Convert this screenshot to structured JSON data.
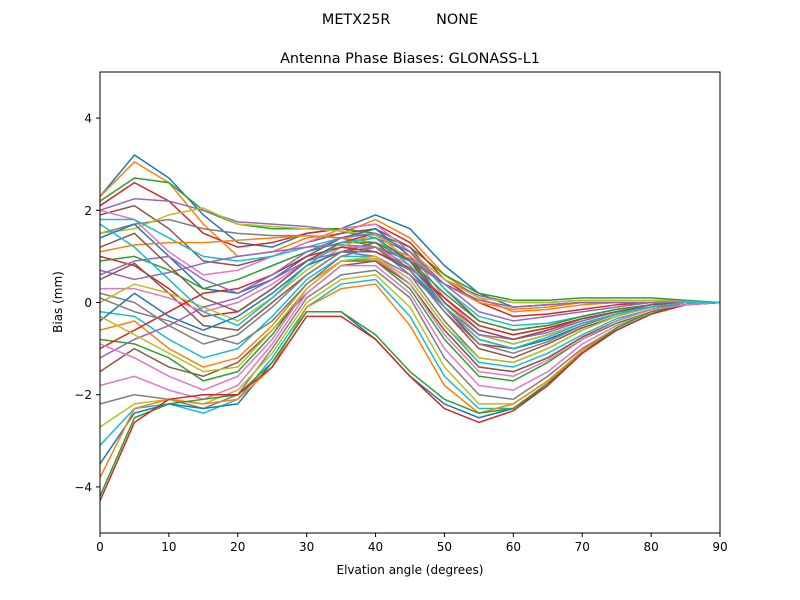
{
  "chart_data": {
    "type": "line",
    "suptitle": "METX25R          NONE",
    "title": "Antenna Phase Biases: GLONASS-L1",
    "xlabel": "Elvation angle (degrees)",
    "ylabel": "Bias (mm)",
    "xlim": [
      0,
      90
    ],
    "ylim": [
      -5,
      5
    ],
    "xticks": [
      0,
      10,
      20,
      30,
      40,
      50,
      60,
      70,
      80,
      90
    ],
    "yticks": [
      -4,
      -2,
      0,
      2,
      4
    ],
    "grid": false,
    "legend": "none",
    "x": [
      0,
      5,
      10,
      15,
      20,
      25,
      30,
      35,
      40,
      45,
      50,
      55,
      60,
      65,
      70,
      75,
      80,
      85,
      90
    ],
    "colors": [
      "#1f77b4",
      "#ff7f0e",
      "#2ca02c",
      "#d62728",
      "#9467bd",
      "#8c564b",
      "#e377c2",
      "#7f7f7f",
      "#bcbd22",
      "#17becf"
    ],
    "series": [
      {
        "values": [
          2.3,
          3.2,
          2.7,
          1.9,
          1.3,
          1.2,
          1.5,
          1.6,
          1.9,
          1.6,
          0.8,
          0.2,
          -0.1,
          -0.05,
          0.0,
          0.0,
          0.0,
          0.0,
          0.0
        ]
      },
      {
        "values": [
          2.3,
          3.05,
          2.6,
          1.7,
          1.0,
          1.1,
          1.4,
          1.5,
          1.8,
          1.4,
          0.6,
          0.1,
          -0.2,
          -0.15,
          -0.05,
          0.0,
          0.0,
          0.0,
          0.0
        ]
      },
      {
        "values": [
          2.2,
          2.7,
          2.6,
          2.0,
          1.7,
          1.6,
          1.6,
          1.6,
          1.5,
          1.2,
          0.6,
          0.2,
          0.05,
          0.05,
          0.1,
          0.1,
          0.1,
          0.05,
          0.0
        ]
      },
      {
        "values": [
          2.1,
          2.6,
          2.2,
          1.5,
          1.2,
          1.3,
          1.5,
          1.6,
          1.7,
          1.3,
          0.5,
          0.0,
          -0.3,
          -0.25,
          -0.15,
          -0.05,
          0.0,
          0.0,
          0.0
        ]
      },
      {
        "values": [
          2.0,
          2.25,
          2.2,
          2.0,
          1.75,
          1.7,
          1.65,
          1.55,
          1.4,
          1.1,
          0.5,
          0.15,
          0.0,
          0.0,
          0.05,
          0.05,
          0.05,
          0.03,
          0.0
        ]
      },
      {
        "values": [
          1.9,
          2.1,
          1.6,
          0.9,
          0.8,
          1.0,
          1.3,
          1.5,
          1.6,
          1.2,
          0.3,
          -0.4,
          -0.6,
          -0.5,
          -0.3,
          -0.15,
          -0.05,
          0.0,
          0.0
        ]
      },
      {
        "values": [
          2.0,
          1.8,
          1.1,
          0.6,
          0.7,
          1.0,
          1.3,
          1.6,
          1.7,
          1.1,
          0.1,
          -0.6,
          -0.8,
          -0.6,
          -0.4,
          -0.2,
          -0.1,
          0.0,
          0.0
        ]
      },
      {
        "values": [
          1.5,
          1.7,
          1.8,
          1.6,
          1.5,
          1.45,
          1.45,
          1.4,
          1.2,
          0.9,
          0.4,
          0.05,
          -0.1,
          -0.05,
          0.0,
          0.0,
          0.0,
          0.0,
          0.0
        ]
      },
      {
        "values": [
          1.5,
          1.6,
          1.9,
          2.05,
          1.7,
          1.65,
          1.6,
          1.55,
          1.45,
          1.1,
          0.5,
          0.1,
          0.0,
          0.0,
          0.05,
          0.05,
          0.05,
          0.02,
          0.0
        ]
      },
      {
        "values": [
          1.8,
          1.8,
          1.4,
          1.0,
          0.9,
          1.0,
          1.2,
          1.4,
          1.5,
          1.1,
          0.3,
          -0.3,
          -0.5,
          -0.45,
          -0.3,
          -0.15,
          -0.05,
          0.0,
          0.0
        ]
      },
      {
        "values": [
          1.4,
          1.7,
          1.0,
          0.3,
          0.2,
          0.5,
          1.0,
          1.4,
          1.6,
          1.0,
          0.0,
          -0.7,
          -0.9,
          -0.7,
          -0.45,
          -0.25,
          -0.1,
          0.0,
          0.0
        ]
      },
      {
        "values": [
          1.1,
          1.25,
          1.3,
          1.3,
          1.35,
          1.4,
          1.45,
          1.4,
          1.3,
          1.0,
          0.4,
          0.0,
          -0.15,
          -0.1,
          0.0,
          0.0,
          0.0,
          0.0,
          0.0
        ]
      },
      {
        "values": [
          0.9,
          1.0,
          0.7,
          0.3,
          0.5,
          0.8,
          1.1,
          1.3,
          1.3,
          0.9,
          0.2,
          -0.4,
          -0.6,
          -0.5,
          -0.3,
          -0.15,
          -0.05,
          0.0,
          0.0
        ]
      },
      {
        "values": [
          1.0,
          0.8,
          0.3,
          -0.3,
          -0.2,
          0.3,
          0.9,
          1.3,
          1.5,
          0.9,
          -0.1,
          -0.9,
          -1.0,
          -0.8,
          -0.5,
          -0.25,
          -0.1,
          0.0,
          0.0
        ]
      },
      {
        "values": [
          0.7,
          0.5,
          0.65,
          0.85,
          1.0,
          1.1,
          1.2,
          1.25,
          1.2,
          0.95,
          0.4,
          0.05,
          -0.1,
          -0.05,
          0.0,
          0.0,
          0.0,
          0.0,
          0.0
        ]
      },
      {
        "values": [
          0.5,
          0.85,
          0.2,
          -0.5,
          -0.6,
          0.0,
          0.6,
          1.1,
          1.3,
          0.7,
          -0.2,
          -1.0,
          -1.2,
          -0.9,
          -0.55,
          -0.3,
          -0.1,
          -0.05,
          0.0
        ]
      },
      {
        "values": [
          0.3,
          0.3,
          0.1,
          -0.2,
          0.0,
          0.4,
          0.9,
          1.2,
          1.2,
          0.8,
          0.1,
          -0.5,
          -0.7,
          -0.55,
          -0.35,
          -0.2,
          -0.05,
          0.0,
          0.0
        ]
      },
      {
        "values": [
          0.2,
          0.0,
          -0.5,
          -0.9,
          -0.7,
          -0.1,
          0.6,
          1.1,
          1.2,
          0.6,
          -0.4,
          -1.2,
          -1.3,
          -1.0,
          -0.6,
          -0.3,
          -0.1,
          0.0,
          0.0
        ]
      },
      {
        "values": [
          0.0,
          0.4,
          0.2,
          -0.1,
          -0.4,
          0.1,
          0.7,
          1.2,
          1.5,
          0.9,
          0.0,
          -0.7,
          -0.9,
          -0.7,
          -0.45,
          -0.25,
          -0.1,
          0.0,
          0.0
        ]
      },
      {
        "values": [
          -0.2,
          -0.3,
          -0.8,
          -1.2,
          -1.0,
          -0.3,
          0.5,
          1.0,
          1.0,
          0.5,
          -0.5,
          -1.3,
          -1.4,
          -1.1,
          -0.7,
          -0.35,
          -0.15,
          -0.05,
          0.0
        ]
      },
      {
        "values": [
          -0.4,
          0.2,
          -0.3,
          -0.6,
          -0.3,
          0.2,
          0.8,
          1.1,
          1.1,
          0.7,
          -0.1,
          -0.8,
          -1.0,
          -0.8,
          -0.5,
          -0.25,
          -0.1,
          0.0,
          0.0
        ]
      },
      {
        "values": [
          -0.6,
          -0.4,
          -1.0,
          -1.4,
          -1.2,
          -0.5,
          0.4,
          0.9,
          0.95,
          0.4,
          -0.6,
          -1.4,
          -1.5,
          -1.2,
          -0.75,
          -0.4,
          -0.15,
          -0.05,
          0.0
        ]
      },
      {
        "values": [
          -0.8,
          -0.9,
          -1.2,
          -1.7,
          -1.5,
          -0.7,
          0.3,
          0.9,
          0.9,
          0.3,
          -0.8,
          -1.6,
          -1.7,
          -1.3,
          -0.8,
          -0.45,
          -0.2,
          -0.05,
          0.0
        ]
      },
      {
        "values": [
          -1.0,
          -0.6,
          -0.2,
          0.2,
          0.3,
          0.6,
          1.0,
          1.2,
          1.1,
          0.75,
          0.1,
          -0.5,
          -0.7,
          -0.55,
          -0.35,
          -0.2,
          -0.1,
          0.0,
          0.0
        ]
      },
      {
        "values": [
          -1.2,
          -0.8,
          -0.5,
          -0.1,
          0.1,
          0.5,
          0.9,
          1.1,
          1.0,
          0.6,
          -0.1,
          -0.7,
          -0.8,
          -0.65,
          -0.4,
          -0.2,
          -0.1,
          0.0,
          0.0
        ]
      },
      {
        "values": [
          -1.5,
          -1.0,
          -1.4,
          -1.6,
          -1.3,
          -0.6,
          0.2,
          0.8,
          0.9,
          0.4,
          -0.6,
          -1.4,
          -1.5,
          -1.2,
          -0.75,
          -0.4,
          -0.15,
          -0.05,
          0.0
        ]
      },
      {
        "values": [
          -1.8,
          -1.6,
          -1.9,
          -2.1,
          -1.8,
          -0.9,
          0.2,
          0.8,
          0.8,
          0.2,
          -1.0,
          -1.8,
          -1.9,
          -1.5,
          -0.9,
          -0.5,
          -0.2,
          -0.05,
          0.0
        ]
      },
      {
        "values": [
          -2.2,
          -2.0,
          -2.1,
          -2.3,
          -2.0,
          -1.0,
          0.1,
          0.6,
          0.7,
          0.1,
          -1.2,
          -2.0,
          -2.1,
          -1.6,
          -1.0,
          -0.55,
          -0.2,
          -0.05,
          0.0
        ]
      },
      {
        "values": [
          -2.7,
          -2.2,
          -2.1,
          -2.2,
          -1.9,
          -1.1,
          0.0,
          0.5,
          0.6,
          -0.1,
          -1.4,
          -2.2,
          -2.2,
          -1.7,
          -1.05,
          -0.55,
          -0.2,
          -0.05,
          0.0
        ]
      },
      {
        "values": [
          -3.1,
          -2.3,
          -2.2,
          -2.4,
          -2.1,
          -1.2,
          -0.1,
          0.4,
          0.5,
          -0.3,
          -1.6,
          -2.3,
          -2.3,
          -1.75,
          -1.1,
          -0.6,
          -0.25,
          -0.05,
          0.0
        ]
      },
      {
        "values": [
          -3.5,
          -2.4,
          -2.2,
          -2.3,
          -2.2,
          -1.3,
          -0.2,
          -0.2,
          -0.8,
          -1.6,
          -2.2,
          -2.5,
          -2.3,
          -1.8,
          -1.1,
          -0.6,
          -0.25,
          -0.05,
          0.0
        ]
      },
      {
        "values": [
          -3.8,
          -2.3,
          -2.1,
          -2.2,
          -2.1,
          -1.4,
          -0.1,
          0.3,
          0.4,
          -0.5,
          -1.8,
          -2.4,
          -2.2,
          -1.7,
          -1.05,
          -0.55,
          -0.2,
          -0.05,
          0.0
        ]
      },
      {
        "values": [
          -4.2,
          -2.5,
          -2.2,
          -2.1,
          -2.0,
          -1.3,
          -0.2,
          -0.2,
          -0.7,
          -1.5,
          -2.1,
          -2.4,
          -2.3,
          -1.75,
          -1.1,
          -0.55,
          -0.2,
          -0.05,
          0.0
        ]
      },
      {
        "values": [
          -4.3,
          -2.6,
          -2.1,
          -2.0,
          -2.0,
          -1.4,
          -0.3,
          -0.3,
          -0.8,
          -1.6,
          -2.3,
          -2.6,
          -2.35,
          -1.8,
          -1.1,
          -0.6,
          -0.25,
          -0.05,
          0.0
        ]
      },
      {
        "values": [
          0.6,
          0.9,
          1.0,
          0.5,
          0.2,
          0.6,
          1.1,
          1.4,
          1.5,
          1.1,
          0.4,
          -0.2,
          -0.4,
          -0.3,
          -0.2,
          -0.1,
          0.0,
          0.0,
          0.0
        ]
      },
      {
        "values": [
          1.2,
          1.5,
          0.8,
          0.1,
          -0.2,
          0.3,
          0.9,
          1.3,
          1.4,
          0.9,
          0.0,
          -0.6,
          -0.8,
          -0.6,
          -0.35,
          -0.2,
          -0.05,
          0.0,
          0.0
        ]
      },
      {
        "values": [
          -0.9,
          -1.2,
          -1.6,
          -1.9,
          -1.6,
          -0.8,
          0.3,
          0.9,
          1.0,
          0.4,
          -0.7,
          -1.5,
          -1.6,
          -1.25,
          -0.8,
          -0.4,
          -0.15,
          -0.05,
          0.0
        ]
      },
      {
        "values": [
          0.1,
          -0.2,
          -0.4,
          -0.7,
          -0.9,
          -0.4,
          0.4,
          1.0,
          1.2,
          0.7,
          -0.2,
          -0.9,
          -1.1,
          -0.85,
          -0.5,
          -0.25,
          -0.1,
          0.0,
          0.0
        ]
      },
      {
        "values": [
          -0.3,
          -0.7,
          -1.1,
          -1.5,
          -1.4,
          -0.6,
          0.3,
          0.9,
          1.0,
          0.5,
          -0.5,
          -1.2,
          -1.3,
          -1.0,
          -0.6,
          -0.3,
          -0.1,
          0.0,
          0.0
        ]
      },
      {
        "values": [
          1.7,
          1.2,
          0.5,
          -0.2,
          -0.5,
          0.1,
          0.8,
          1.3,
          1.4,
          0.8,
          -0.1,
          -0.8,
          -1.0,
          -0.75,
          -0.45,
          -0.25,
          -0.1,
          0.0,
          0.0
        ]
      }
    ]
  }
}
